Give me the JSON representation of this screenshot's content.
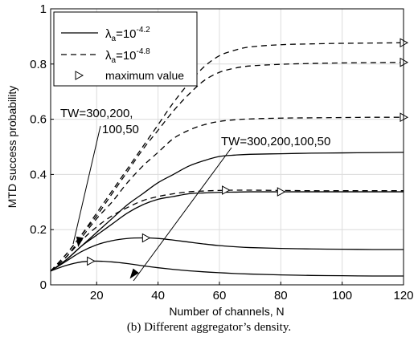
{
  "chart_data": {
    "type": "line",
    "xlabel": "Number of channels, N",
    "ylabel": "MTD success probability",
    "xlim": [
      5,
      120
    ],
    "ylim": [
      0,
      1
    ],
    "xticks": [
      20,
      40,
      60,
      80,
      100,
      120
    ],
    "yticks": [
      0,
      0.2,
      0.4,
      0.6,
      0.8,
      1
    ],
    "grid": true,
    "legend_position": "top-left",
    "legend": [
      {
        "style": "solid",
        "label_main": "λ",
        "label_sub": "a",
        "label_rest": "=10",
        "label_sup": "-4.2"
      },
      {
        "style": "dashed",
        "label_main": "λ",
        "label_sub": "a",
        "label_rest": "=10",
        "label_sup": "-4.8"
      },
      {
        "style": "marker",
        "label_main": "maximum value",
        "label_sub": "",
        "label_rest": "",
        "label_sup": ""
      }
    ],
    "x": [
      5,
      10,
      15,
      20,
      25,
      30,
      35,
      40,
      45,
      50,
      55,
      60,
      65,
      70,
      80,
      90,
      100,
      110,
      120
    ],
    "series": [
      {
        "style": "solid",
        "tw": 300,
        "values": [
          0.05,
          0.09,
          0.14,
          0.19,
          0.24,
          0.29,
          0.33,
          0.37,
          0.4,
          0.43,
          0.45,
          0.465,
          0.47,
          0.473,
          0.475,
          0.477,
          0.478,
          0.479,
          0.48
        ]
      },
      {
        "style": "solid",
        "tw": 200,
        "values": [
          0.05,
          0.09,
          0.14,
          0.18,
          0.22,
          0.26,
          0.29,
          0.31,
          0.32,
          0.33,
          0.333,
          0.335,
          0.336,
          0.337,
          0.337,
          0.337,
          0.337,
          0.337,
          0.337
        ],
        "max_marker": {
          "x": 80,
          "y": 0.337
        }
      },
      {
        "style": "solid",
        "tw": 100,
        "values": [
          0.05,
          0.085,
          0.12,
          0.145,
          0.16,
          0.168,
          0.17,
          0.168,
          0.162,
          0.155,
          0.148,
          0.142,
          0.138,
          0.135,
          0.132,
          0.13,
          0.129,
          0.128,
          0.128
        ],
        "max_marker": {
          "x": 36,
          "y": 0.17
        }
      },
      {
        "style": "solid",
        "tw": 50,
        "values": [
          0.05,
          0.07,
          0.083,
          0.086,
          0.083,
          0.077,
          0.069,
          0.062,
          0.056,
          0.051,
          0.047,
          0.044,
          0.041,
          0.039,
          0.036,
          0.034,
          0.033,
          0.032,
          0.032
        ],
        "max_marker": {
          "x": 18,
          "y": 0.086
        }
      },
      {
        "style": "dashed",
        "tw": 300,
        "values": [
          0.05,
          0.11,
          0.18,
          0.26,
          0.34,
          0.42,
          0.5,
          0.58,
          0.66,
          0.73,
          0.79,
          0.83,
          0.85,
          0.862,
          0.87,
          0.873,
          0.875,
          0.876,
          0.877
        ],
        "max_marker": {
          "x": 120,
          "y": 0.877
        }
      },
      {
        "style": "dashed",
        "tw": 200,
        "values": [
          0.05,
          0.11,
          0.18,
          0.25,
          0.33,
          0.41,
          0.49,
          0.56,
          0.63,
          0.69,
          0.74,
          0.77,
          0.785,
          0.793,
          0.799,
          0.802,
          0.804,
          0.805,
          0.806
        ],
        "max_marker": {
          "x": 120,
          "y": 0.806
        }
      },
      {
        "style": "dashed",
        "tw": 100,
        "values": [
          0.05,
          0.1,
          0.17,
          0.24,
          0.3,
          0.37,
          0.43,
          0.48,
          0.53,
          0.56,
          0.58,
          0.592,
          0.598,
          0.601,
          0.604,
          0.605,
          0.606,
          0.607,
          0.607
        ],
        "max_marker": {
          "x": 120,
          "y": 0.607
        }
      },
      {
        "style": "dashed",
        "tw": 50,
        "values": [
          0.05,
          0.1,
          0.16,
          0.21,
          0.25,
          0.28,
          0.305,
          0.32,
          0.33,
          0.337,
          0.34,
          0.342,
          0.343,
          0.343,
          0.342,
          0.341,
          0.341,
          0.341,
          0.341
        ],
        "max_marker": {
          "x": 62,
          "y": 0.343
        }
      }
    ],
    "annotations": [
      {
        "lines": [
          "TW=300,200,",
          "100,50"
        ],
        "arrow_to": {
          "x": 14,
          "y": 0.14
        }
      },
      {
        "lines": [
          "TW=300,200,100,50"
        ],
        "arrow_to": {
          "x": 31,
          "y": 0.025
        }
      }
    ]
  },
  "caption": "(b) Different aggregator’s density."
}
